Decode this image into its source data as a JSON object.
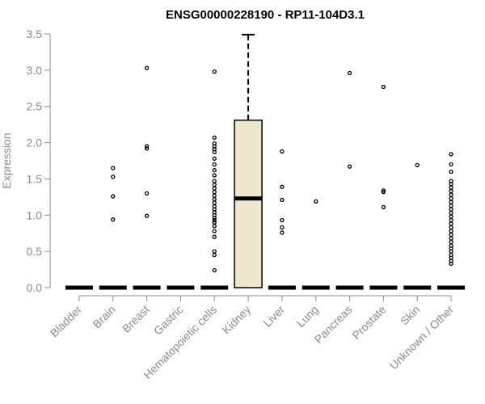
{
  "chart_data": {
    "type": "box",
    "title": "ENSG00000228190 - RP11-104D3.1",
    "xlabel": "",
    "ylabel": "Expression",
    "ylim": [
      0,
      3.5
    ],
    "yticks": [
      "0.0",
      "0.5",
      "1.0",
      "1.5",
      "2.0",
      "2.5",
      "3.0",
      "3.5"
    ],
    "grid": false,
    "categories": [
      "Bladder",
      "Brain",
      "Breast",
      "Gastric",
      "Hematopoietic cells",
      "Kidney",
      "Liver",
      "Lung",
      "Pancreas",
      "Prostate",
      "Skin",
      "Unknown / Other"
    ],
    "boxes": [
      {
        "category": "Bladder",
        "min": 0,
        "q1": 0,
        "median": 0,
        "q3": 0,
        "max": 0,
        "outliers": []
      },
      {
        "category": "Brain",
        "min": 0,
        "q1": 0,
        "median": 0,
        "q3": 0,
        "max": 0,
        "outliers": [
          0.94,
          1.26,
          1.53,
          1.65
        ]
      },
      {
        "category": "Breast",
        "min": 0,
        "q1": 0,
        "median": 0,
        "q3": 0,
        "max": 0,
        "outliers": [
          0.99,
          1.3,
          1.92,
          1.95,
          3.03
        ]
      },
      {
        "category": "Gastric",
        "min": 0,
        "q1": 0,
        "median": 0,
        "q3": 0,
        "max": 0,
        "outliers": []
      },
      {
        "category": "Hematopoietic cells",
        "min": 0,
        "q1": 0,
        "median": 0,
        "q3": 0,
        "max": 0,
        "outliers": [
          0.24,
          0.45,
          0.5,
          0.7,
          0.78,
          0.85,
          0.9,
          0.93,
          0.96,
          1.0,
          1.04,
          1.08,
          1.12,
          1.17,
          1.22,
          1.27,
          1.32,
          1.37,
          1.42,
          1.47,
          1.55,
          1.62,
          1.7,
          1.78,
          1.87,
          1.91,
          1.95,
          1.99,
          2.07,
          2.98
        ]
      },
      {
        "category": "Kidney",
        "min": 0,
        "q1": 0,
        "median": 1.23,
        "q3": 2.31,
        "max": 3.49,
        "outliers": []
      },
      {
        "category": "Liver",
        "min": 0,
        "q1": 0,
        "median": 0,
        "q3": 0,
        "max": 0,
        "outliers": [
          0.76,
          0.83,
          0.93,
          1.21,
          1.39,
          1.88
        ]
      },
      {
        "category": "Lung",
        "min": 0,
        "q1": 0,
        "median": 0,
        "q3": 0,
        "max": 0,
        "outliers": [
          1.19
        ]
      },
      {
        "category": "Pancreas",
        "min": 0,
        "q1": 0,
        "median": 0,
        "q3": 0,
        "max": 0,
        "outliers": [
          1.67,
          2.96
        ]
      },
      {
        "category": "Prostate",
        "min": 0,
        "q1": 0,
        "median": 0,
        "q3": 0,
        "max": 0,
        "outliers": [
          1.11,
          1.32,
          1.34,
          2.77
        ]
      },
      {
        "category": "Skin",
        "min": 0,
        "q1": 0,
        "median": 0,
        "q3": 0,
        "max": 0,
        "outliers": [
          1.69
        ]
      },
      {
        "category": "Unknown / Other",
        "min": 0,
        "q1": 0,
        "median": 0,
        "q3": 0,
        "max": 0,
        "outliers": [
          0.33,
          0.37,
          0.41,
          0.45,
          0.5,
          0.54,
          0.58,
          0.63,
          0.68,
          0.73,
          0.78,
          0.83,
          0.88,
          0.93,
          0.98,
          1.03,
          1.08,
          1.13,
          1.18,
          1.23,
          1.28,
          1.33,
          1.38,
          1.43,
          1.47,
          1.6,
          1.7,
          1.84
        ]
      }
    ],
    "colors": {
      "box_fill": "#efe8cf",
      "box_line": "#000000",
      "tick_text": "#8c8c8c",
      "axis_line": "#8c8c8c"
    }
  }
}
